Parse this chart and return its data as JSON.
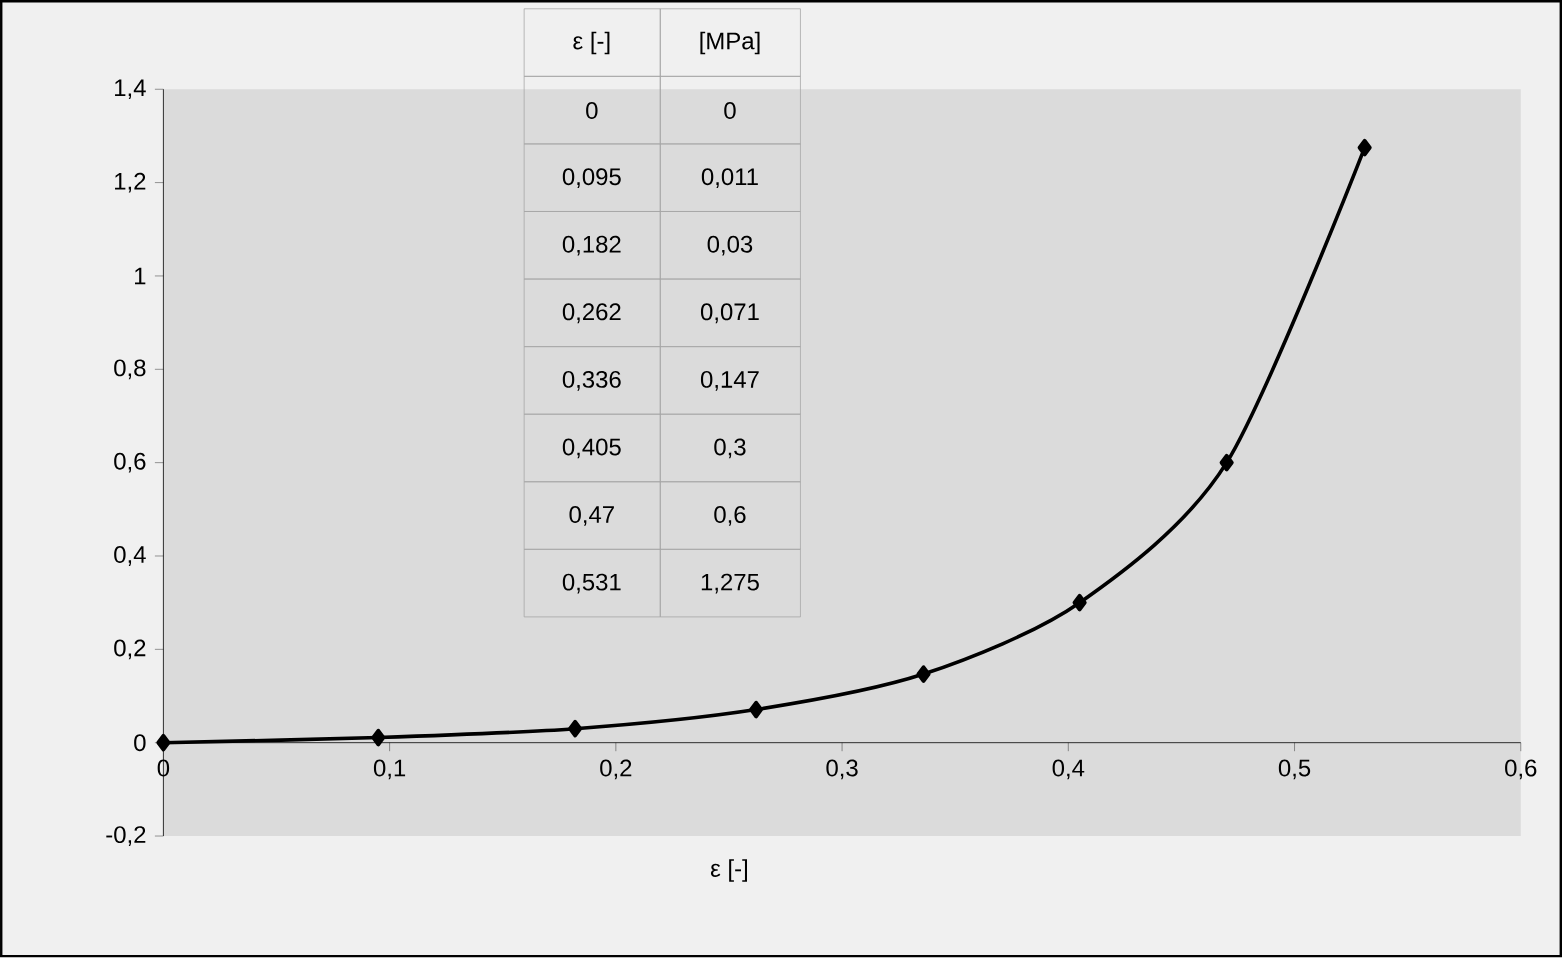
{
  "chart_data": {
    "type": "line",
    "xlabel": "ε [-]",
    "annotations": [
      "ε [-]",
      "[MPa]",
      "0",
      "0,095",
      "0,182",
      "0,262",
      "0,336",
      "0,405",
      "0,47",
      "0,531"
    ],
    "x": [
      0,
      0.095,
      0.182,
      0.262,
      0.336,
      0.405,
      0.47,
      0.531
    ],
    "series": [
      {
        "color": "#000000",
        "values": [
          0,
          0.011,
          0.03,
          0.071,
          0.147,
          0.3,
          0.6,
          1.275
        ]
      }
    ],
    "value_labels": [
      "0",
      "0,011",
      "0,03",
      "0,071",
      "0,147",
      "0,3",
      "0,6",
      "1,275"
    ],
    "xlim": [
      0,
      0.6
    ],
    "ylim": [
      -0.2,
      1.4
    ],
    "xticks": [
      0,
      {
        "value": 0.1,
        "label": "0,1"
      },
      {
        "value": 0.2,
        "label": "0,2"
      },
      {
        "value": 0.3,
        "label": "0,3"
      },
      {
        "value": 0.4,
        "label": "0,4"
      },
      {
        "value": 0.5,
        "label": "0,5"
      },
      {
        "value": 0.6,
        "label": "0,6"
      }
    ],
    "yticks": [
      {
        "value": -0.2,
        "label": "-0,2"
      },
      0,
      {
        "value": 0.2,
        "label": "0,2"
      },
      {
        "value": 0.4,
        "label": "0,4"
      },
      {
        "value": 0.6,
        "label": "0,6"
      },
      {
        "value": 0.8,
        "label": "0,8"
      },
      1,
      {
        "value": 1.2,
        "label": "1,2"
      },
      {
        "value": 1.4,
        "label": "1,4"
      }
    ],
    "grid": false,
    "marker": "diamond",
    "line_style": "solid"
  }
}
